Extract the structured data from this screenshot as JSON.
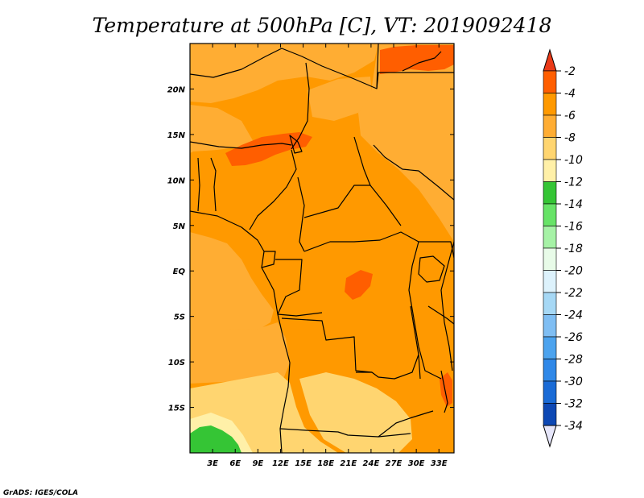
{
  "chart_data": {
    "type": "heatmap",
    "title": "Temperature at 500hPa [C], VT: 2019092418",
    "variable": "Temperature at 500hPa",
    "units": "C",
    "valid_time": "2019092418",
    "x_axis": {
      "range": [
        0,
        35
      ],
      "ticks": [
        {
          "value": 3,
          "label": "3E"
        },
        {
          "value": 6,
          "label": "6E"
        },
        {
          "value": 9,
          "label": "9E"
        },
        {
          "value": 12,
          "label": "12E"
        },
        {
          "value": 15,
          "label": "15E"
        },
        {
          "value": 18,
          "label": "18E"
        },
        {
          "value": 21,
          "label": "21E"
        },
        {
          "value": 24,
          "label": "24E"
        },
        {
          "value": 27,
          "label": "27E"
        },
        {
          "value": 30,
          "label": "30E"
        },
        {
          "value": 33,
          "label": "33E"
        }
      ]
    },
    "y_axis": {
      "range": [
        -20,
        25
      ],
      "ticks": [
        {
          "value": 20,
          "label": "20N"
        },
        {
          "value": 15,
          "label": "15N"
        },
        {
          "value": 10,
          "label": "10N"
        },
        {
          "value": 5,
          "label": "5N"
        },
        {
          "value": 0,
          "label": "EQ"
        },
        {
          "value": -5,
          "label": "5S"
        },
        {
          "value": -10,
          "label": "10S"
        },
        {
          "value": -15,
          "label": "15S"
        }
      ]
    },
    "colorbar": {
      "levels": [
        -2,
        -4,
        -6,
        -8,
        -10,
        -12,
        -14,
        -16,
        -18,
        -20,
        -22,
        -24,
        -26,
        -28,
        -30,
        -32,
        -34
      ],
      "colors": [
        "#ff5e00",
        "#ff9900",
        "#ffad33",
        "#ffd570",
        "#fff0a8",
        "#35c535",
        "#67e367",
        "#a6f2a6",
        "#e8fbe8",
        "#ddf2fc",
        "#a6d8f5",
        "#7fbef3",
        "#4ca3ee",
        "#2f88e8",
        "#1a6bd6",
        "#0d48b4",
        "#0a1a70"
      ],
      "top_color": "#ea3a18",
      "bottom_color": "#e6e6fa"
    },
    "regions": [
      {
        "name": "background",
        "level": -6,
        "color": "#ff9900"
      },
      {
        "name": "west-sahel",
        "level": -8,
        "color": "#ffad33"
      },
      {
        "name": "nigeria-west-africa",
        "level": -8,
        "color": "#ffad33"
      },
      {
        "name": "niger-chad-north",
        "level": -8,
        "color": "#ffad33"
      },
      {
        "name": "gulf-of-guinea-atlantic",
        "level": -8,
        "color": "#ffad33"
      },
      {
        "name": "angola-atlantic",
        "level": -8,
        "color": "#ffad33"
      },
      {
        "name": "east-africa",
        "level": -8,
        "color": "#ffad33"
      },
      {
        "name": "southwest-angola",
        "level": -10,
        "color": "#ffd570"
      },
      {
        "name": "south-center",
        "level": -10,
        "color": "#ffd570"
      },
      {
        "name": "southwest-corner-cool",
        "level": -12,
        "color": "#fff0a8"
      },
      {
        "name": "southwest-corner-green",
        "level": -14,
        "color": "#35c535"
      },
      {
        "name": "northeast-warm",
        "level": -4,
        "color": "#ff5e00"
      },
      {
        "name": "sahel-warm-band",
        "level": -4,
        "color": "#ff5e00"
      },
      {
        "name": "congo-warm",
        "level": -4,
        "color": "#ff5e00"
      },
      {
        "name": "mozambique-warm",
        "level": -4,
        "color": "#ff5e00"
      }
    ]
  },
  "credit": "GrADS: IGES/COLA"
}
